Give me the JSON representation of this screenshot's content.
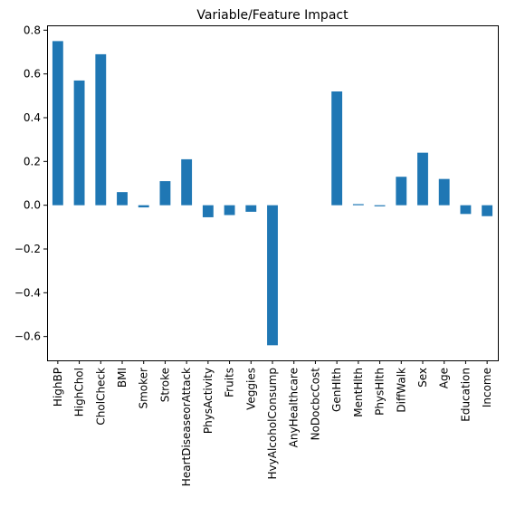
{
  "chart_data": {
    "type": "bar",
    "title": "Variable/Feature Impact",
    "xlabel": "",
    "ylabel": "",
    "categories": [
      "HighBP",
      "HighChol",
      "CholCheck",
      "BMI",
      "Smoker",
      "Stroke",
      "HeartDiseaseorAttack",
      "PhysActivity",
      "Fruits",
      "Veggies",
      "HvyAlcoholConsump",
      "AnyHealthcare",
      "NoDocbcCost",
      "GenHlth",
      "MentHlth",
      "PhysHlth",
      "DiffWalk",
      "Sex",
      "Age",
      "Education",
      "Income"
    ],
    "values": [
      0.75,
      0.57,
      0.69,
      0.06,
      -0.01,
      0.11,
      0.21,
      -0.055,
      -0.045,
      -0.03,
      -0.64,
      0.0,
      0.0,
      0.52,
      0.005,
      -0.005,
      0.13,
      0.24,
      0.12,
      -0.04,
      -0.05
    ],
    "yticks": [
      0.8,
      0.6,
      0.4,
      0.2,
      0.0,
      -0.2,
      -0.4,
      -0.6
    ],
    "ytick_labels": [
      "0.8",
      "0.6",
      "0.4",
      "0.2",
      "0.0",
      "−0.2",
      "−0.4",
      "−0.6"
    ],
    "ylim": [
      -0.709,
      0.822
    ],
    "bar_color": "#1f77b4",
    "grid": false,
    "legend": "none"
  }
}
